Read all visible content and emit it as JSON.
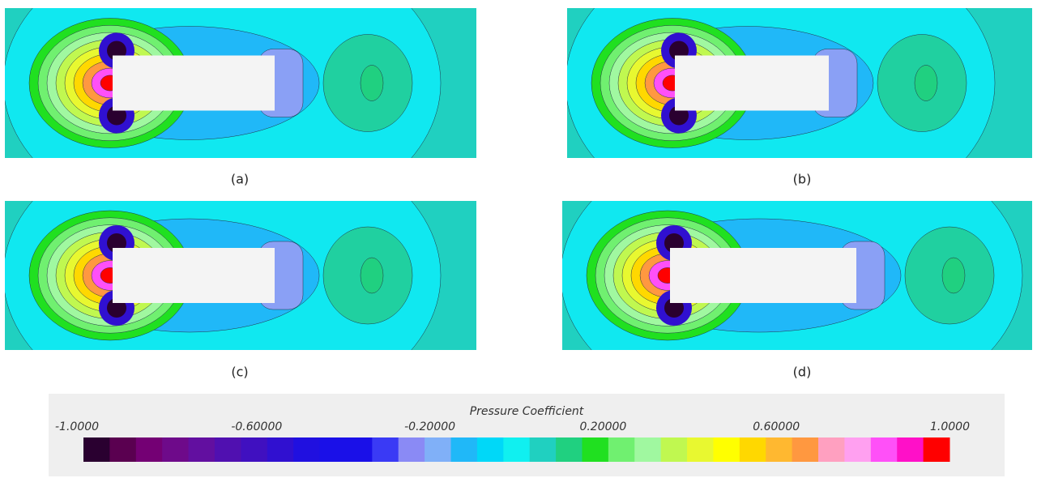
{
  "panels": [
    {
      "label": "(a)"
    },
    {
      "label": "(b)"
    },
    {
      "label": "(c)"
    },
    {
      "label": "(d)"
    }
  ],
  "colorbar": {
    "title": "Pressure Coefficient",
    "range": [
      -1,
      1
    ],
    "ticks": [
      {
        "value": -1,
        "label": "-1.0000"
      },
      {
        "value": -0.6,
        "label": "-0.60000"
      },
      {
        "value": -0.2,
        "label": "-0.20000"
      },
      {
        "value": 0.2,
        "label": "0.20000"
      },
      {
        "value": 0.6,
        "label": "0.60000"
      },
      {
        "value": 1,
        "label": "1.0000"
      }
    ],
    "colors": [
      "#2a0030",
      "#5a0050",
      "#740074",
      "#6e0a8a",
      "#620fa0",
      "#5010b0",
      "#4010c0",
      "#3010d0",
      "#2010e0",
      "#1a10e8",
      "#1a10e8",
      "#3a3af5",
      "#8a8af5",
      "#80b0f8",
      "#20b8f8",
      "#00d8f8",
      "#10f0f0",
      "#20d0c0",
      "#20d080",
      "#20e020",
      "#70f070",
      "#a0f8a0",
      "#c0f850",
      "#e8f830",
      "#ffff00",
      "#ffd800",
      "#ffb830",
      "#ff9840",
      "#ffa0c0",
      "#ffa0f0",
      "#ff50f8",
      "#ff10c8",
      "#ff0000"
    ]
  }
}
